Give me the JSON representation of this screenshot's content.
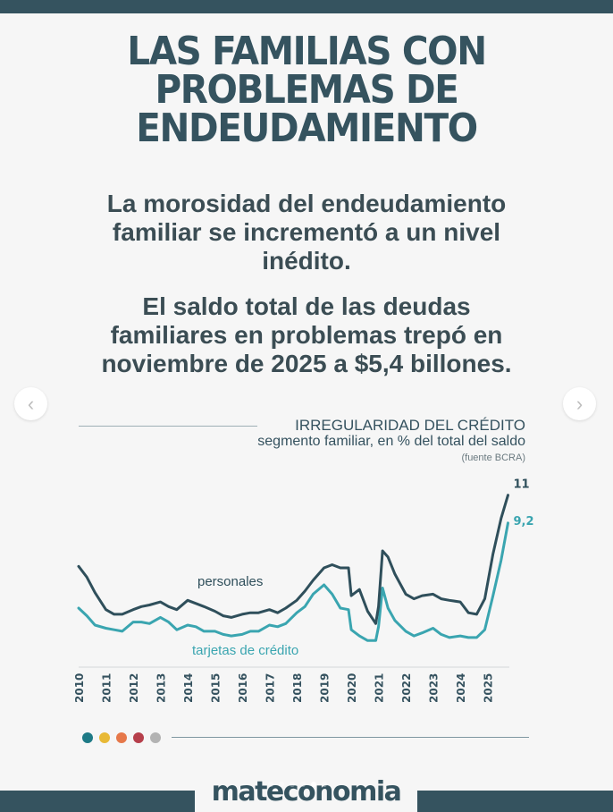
{
  "header": {
    "title_lines": [
      "LAS FAMILIAS CON",
      "PROBLEMAS DE",
      "ENDEUDAMIENTO"
    ],
    "subtitle1_lines": [
      "La morosidad del endeudamiento",
      "familiar se incrementó a un nivel",
      "inédito."
    ],
    "subtitle2_lines": [
      "El saldo total de las deudas",
      "familiares en problemas trepó en",
      "noviembre de 2025 a $5,4 billones."
    ]
  },
  "nav": {
    "prev_icon": "‹",
    "next_icon": "›"
  },
  "chart_data": {
    "type": "line",
    "title": "IRREGULARIDAD DEL CRÉDITO",
    "subtitle": "segmento familiar, en % del total del saldo",
    "source": "(fuente BCRA)",
    "xlabel": "",
    "ylabel": "",
    "x_ticks": [
      "2010",
      "2011",
      "2012",
      "2013",
      "2014",
      "2015",
      "2016",
      "2017",
      "2018",
      "2019",
      "2020",
      "2021",
      "2022",
      "2023",
      "2024",
      "2025"
    ],
    "xlim": [
      2010,
      2025.8
    ],
    "ylim": [
      0,
      11.5
    ],
    "grid": false,
    "legend": "inline",
    "series": [
      {
        "name": "personales",
        "color": "#2f4f5b",
        "end_label": "11",
        "x": [
          2010.0,
          2010.3,
          2010.6,
          2011.0,
          2011.3,
          2011.6,
          2012.0,
          2012.3,
          2012.6,
          2013.0,
          2013.3,
          2013.6,
          2014.0,
          2014.3,
          2014.6,
          2015.0,
          2015.3,
          2015.6,
          2016.0,
          2016.3,
          2016.6,
          2017.0,
          2017.3,
          2017.6,
          2018.0,
          2018.3,
          2018.6,
          2019.0,
          2019.3,
          2019.6,
          2019.9,
          2020.0,
          2020.3,
          2020.6,
          2020.9,
          2021.0,
          2021.15,
          2021.35,
          2021.6,
          2022.0,
          2022.3,
          2022.6,
          2023.0,
          2023.3,
          2023.6,
          2024.0,
          2024.3,
          2024.6,
          2024.9,
          2025.2,
          2025.5,
          2025.75
        ],
        "values": [
          6.4,
          5.7,
          4.7,
          3.6,
          3.3,
          3.3,
          3.6,
          3.8,
          3.9,
          4.1,
          3.8,
          3.6,
          4.2,
          4.0,
          3.8,
          3.5,
          3.2,
          3.1,
          3.3,
          3.4,
          3.4,
          3.6,
          3.4,
          3.7,
          4.2,
          4.8,
          5.5,
          6.3,
          6.5,
          6.3,
          6.3,
          4.5,
          4.9,
          3.5,
          2.7,
          3.8,
          7.4,
          7.0,
          5.9,
          4.6,
          4.3,
          4.5,
          4.6,
          4.3,
          4.2,
          4.1,
          3.4,
          3.3,
          4.3,
          7.2,
          9.5,
          11.0
        ]
      },
      {
        "name": "tarjetas de crédito",
        "color": "#3aa5b0",
        "end_label": "9,2",
        "x": [
          2010.0,
          2010.3,
          2010.6,
          2011.0,
          2011.3,
          2011.6,
          2012.0,
          2012.3,
          2012.6,
          2013.0,
          2013.3,
          2013.6,
          2014.0,
          2014.3,
          2014.6,
          2015.0,
          2015.3,
          2015.6,
          2016.0,
          2016.3,
          2016.6,
          2017.0,
          2017.3,
          2017.6,
          2018.0,
          2018.3,
          2018.6,
          2019.0,
          2019.3,
          2019.6,
          2019.9,
          2020.0,
          2020.3,
          2020.6,
          2020.9,
          2021.0,
          2021.15,
          2021.35,
          2021.6,
          2022.0,
          2022.3,
          2022.6,
          2023.0,
          2023.3,
          2023.6,
          2024.0,
          2024.3,
          2024.6,
          2024.9,
          2025.2,
          2025.5,
          2025.75
        ],
        "values": [
          3.7,
          3.2,
          2.6,
          2.4,
          2.3,
          2.2,
          2.8,
          2.8,
          2.7,
          3.1,
          2.8,
          2.3,
          2.6,
          2.5,
          2.2,
          2.2,
          2.0,
          1.9,
          2.0,
          2.2,
          2.2,
          2.6,
          2.5,
          2.7,
          3.4,
          3.8,
          4.6,
          5.2,
          4.6,
          3.7,
          3.6,
          2.3,
          1.9,
          1.6,
          1.6,
          2.5,
          5.0,
          3.7,
          2.9,
          2.2,
          1.9,
          2.1,
          2.4,
          2.0,
          1.8,
          1.9,
          1.8,
          1.8,
          2.3,
          4.5,
          6.8,
          9.2
        ]
      }
    ],
    "annotations": [
      "personales",
      "tarjetas de crédito"
    ]
  },
  "footer": {
    "dot_colors": [
      "#1e7a86",
      "#e8b936",
      "#e6784a",
      "#b63f4b",
      "#b3b3b3"
    ],
    "brand": "mateconomia",
    "pager_count": 6,
    "pager_active": 5
  }
}
